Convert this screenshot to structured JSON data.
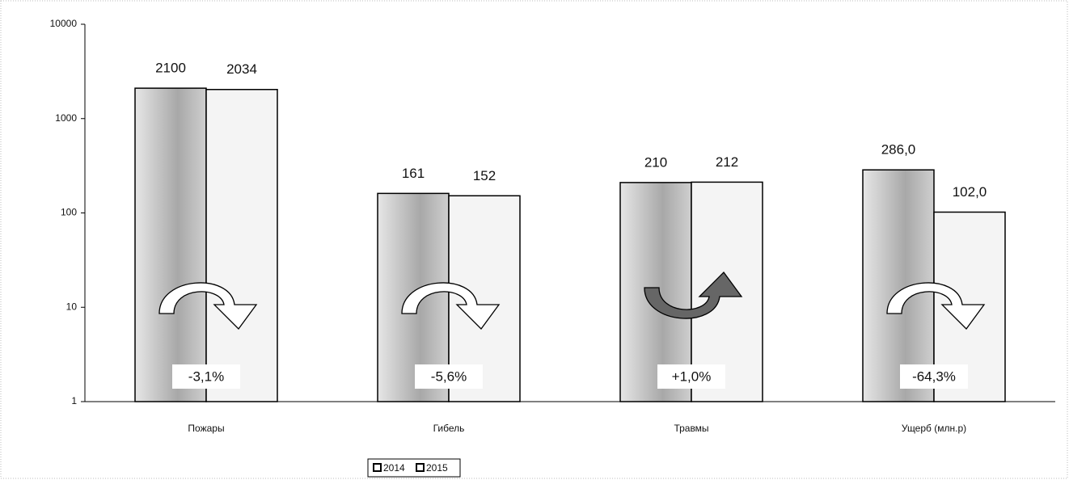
{
  "chart_data": {
    "type": "bar",
    "categories": [
      "Пожары",
      "Гибель",
      "Травмы",
      "Ущерб (млн.р)"
    ],
    "series": [
      {
        "name": "2014",
        "color": "#b8b8b8",
        "values": [
          2100,
          161,
          210,
          286
        ],
        "value_labels": [
          "2100",
          "161",
          "210",
          "286,0"
        ]
      },
      {
        "name": "2015",
        "color": "#f4f4f4",
        "values": [
          2034,
          152,
          212,
          102
        ],
        "value_labels": [
          "2034",
          "152",
          "212",
          "102,0"
        ]
      }
    ],
    "changes": {
      "values": [
        -3.1,
        -5.6,
        1.0,
        -64.3
      ],
      "value_labels": [
        "-3,1%",
        "-5,6%",
        "+1,0%",
        "-64,3%"
      ]
    },
    "ylim": [
      1,
      10000
    ],
    "yticks": [
      1,
      10,
      100,
      1000,
      10000
    ],
    "log_scale": true,
    "grid": false,
    "legend": "bottom"
  }
}
